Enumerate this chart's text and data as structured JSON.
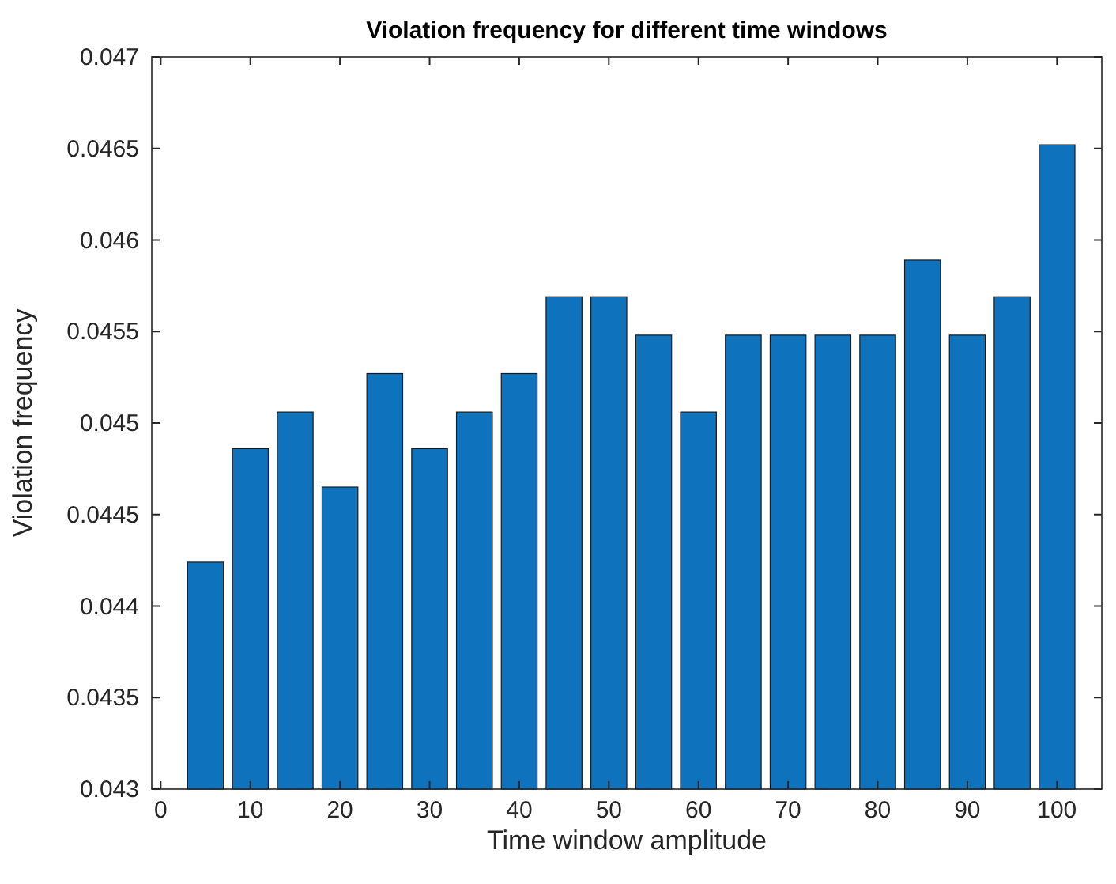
{
  "chart_data": {
    "type": "bar",
    "title": "Violation frequency for different time windows",
    "xlabel": "Time window amplitude",
    "ylabel": "Violation frequency",
    "x": [
      5,
      10,
      15,
      20,
      25,
      30,
      35,
      40,
      45,
      50,
      55,
      60,
      65,
      70,
      75,
      80,
      85,
      90,
      95,
      100
    ],
    "values": [
      0.04424,
      0.04486,
      0.04506,
      0.04465,
      0.04527,
      0.04486,
      0.04506,
      0.04527,
      0.04569,
      0.04569,
      0.04548,
      0.04506,
      0.04548,
      0.04548,
      0.04548,
      0.04548,
      0.04589,
      0.04548,
      0.04569,
      0.04652
    ],
    "color": "#0f72bd",
    "xlim": [
      -1,
      105
    ],
    "xticks": [
      0,
      10,
      20,
      30,
      40,
      50,
      60,
      70,
      80,
      90,
      100
    ],
    "ylim": [
      0.043,
      0.047
    ],
    "yticks": [
      0.043,
      0.0435,
      0.044,
      0.0445,
      0.045,
      0.0455,
      0.046,
      0.0465,
      0.047
    ],
    "grid": false
  }
}
